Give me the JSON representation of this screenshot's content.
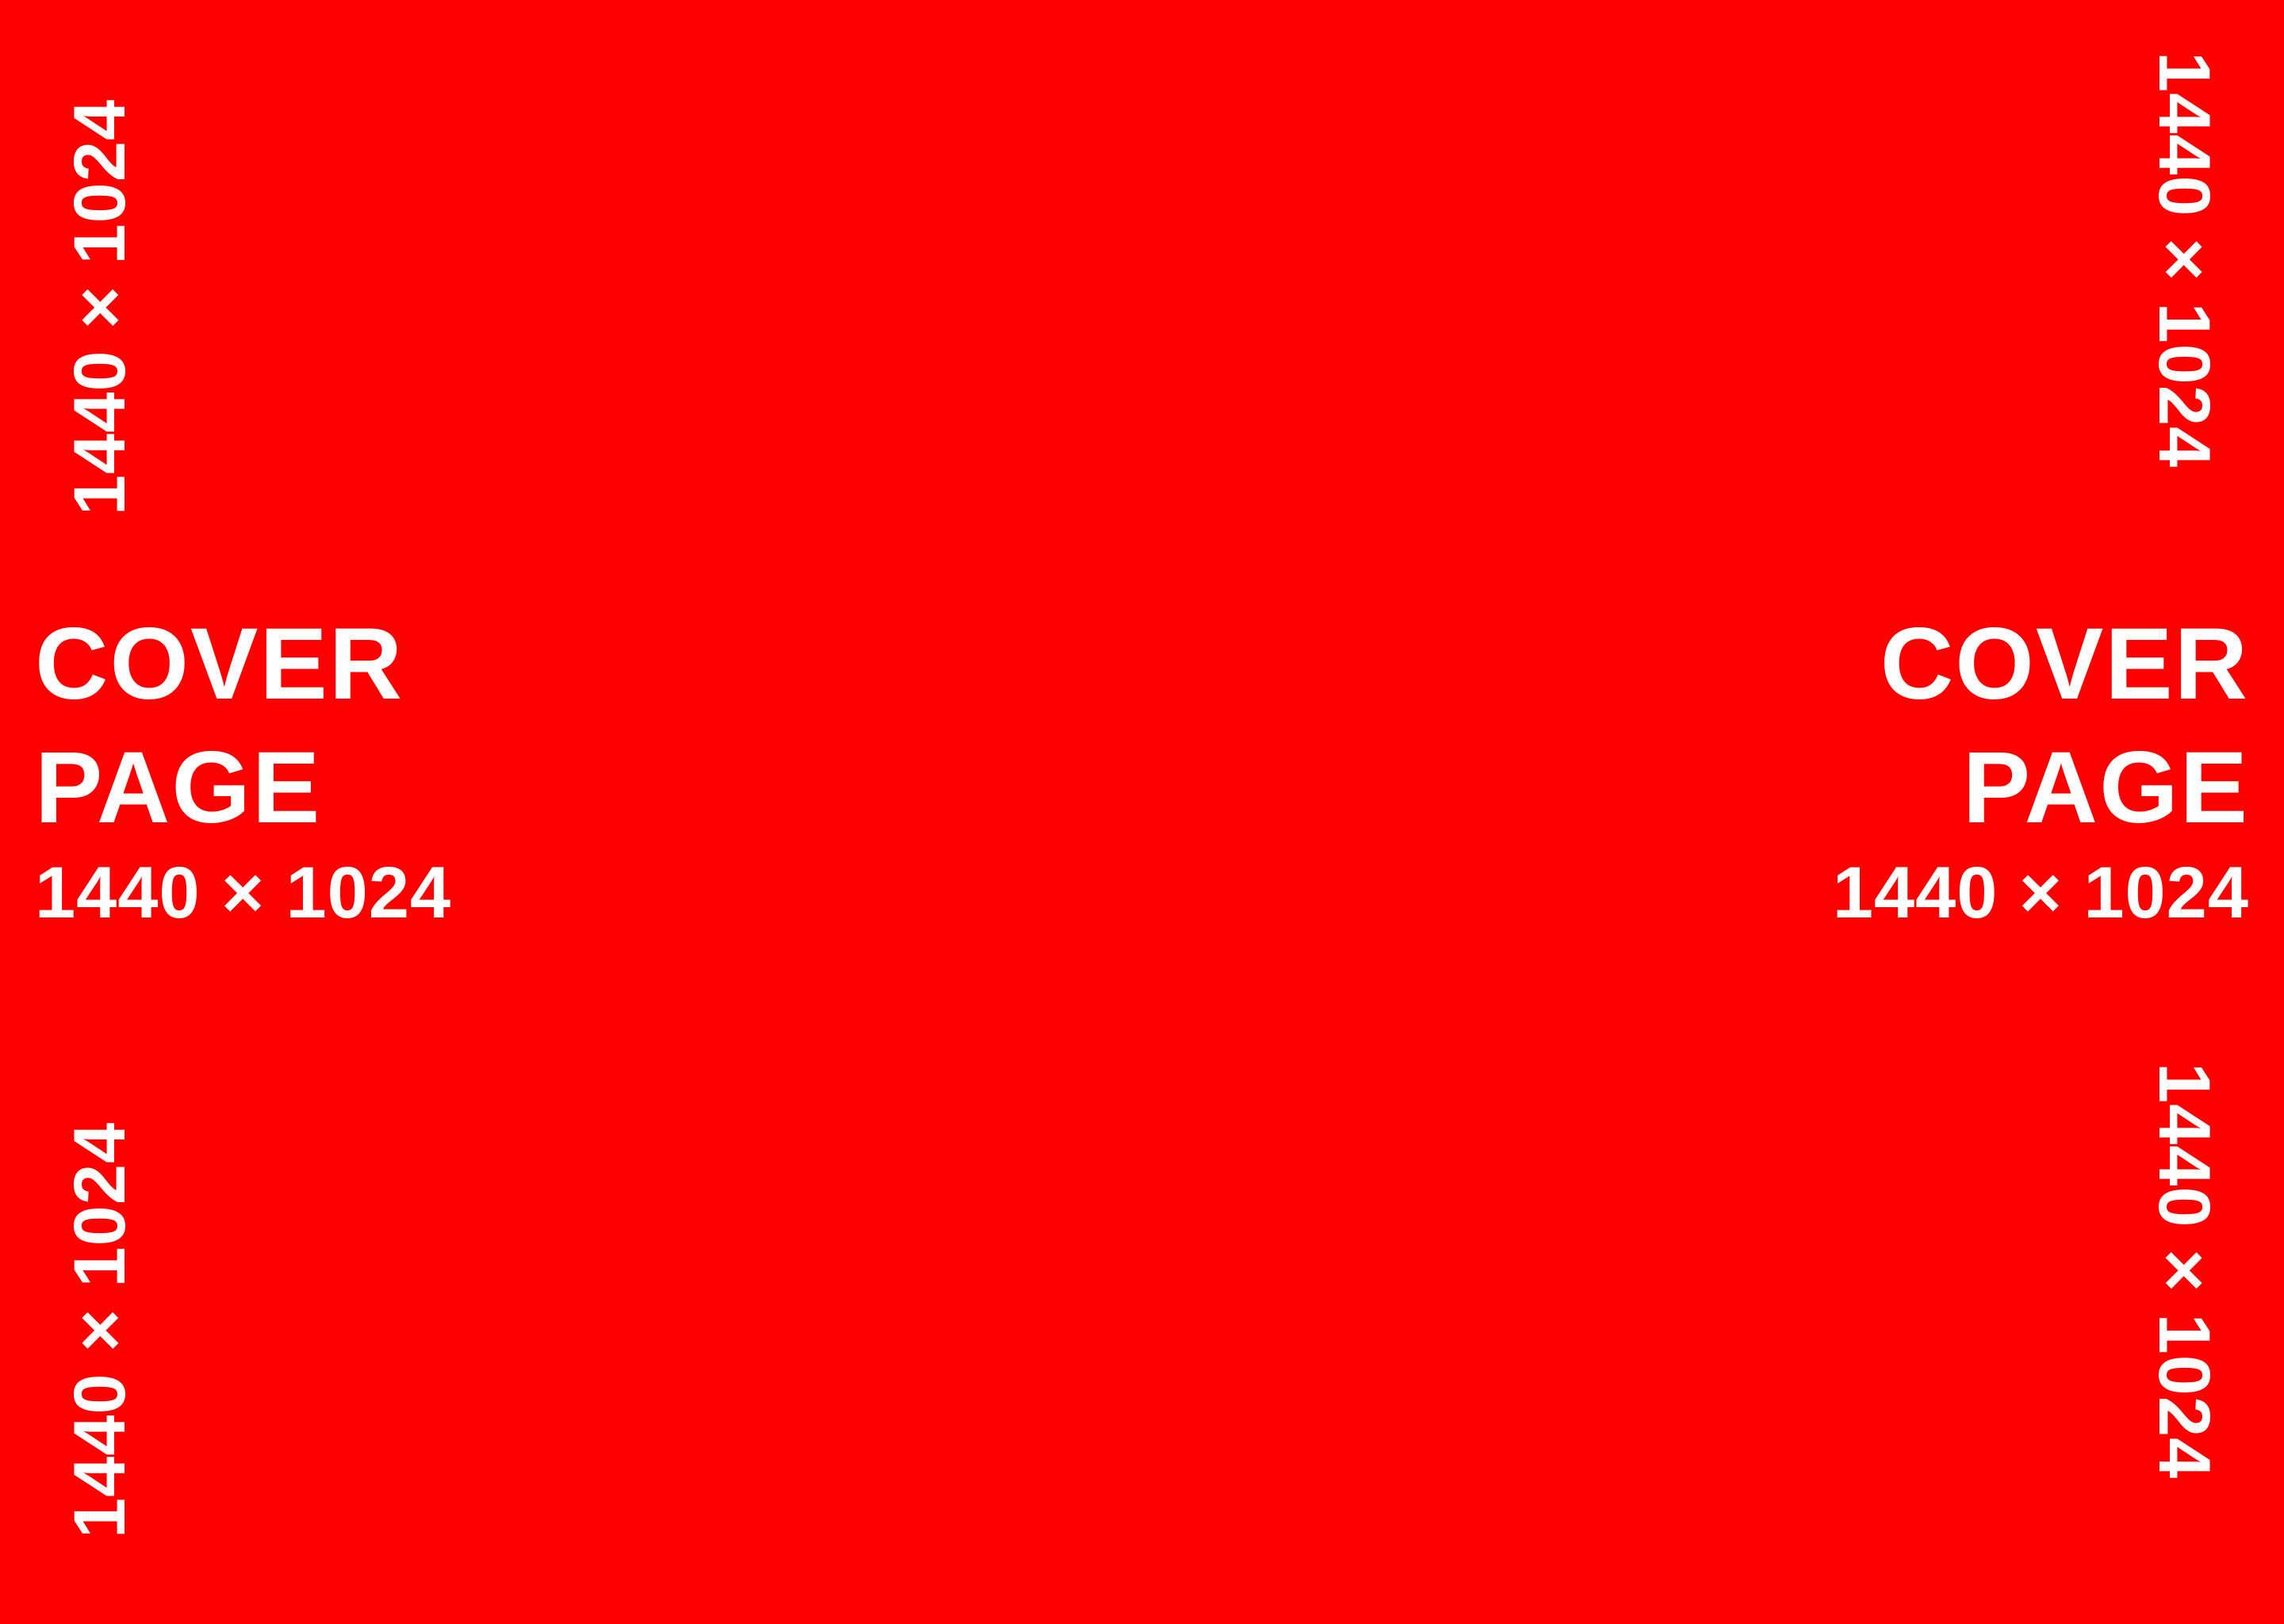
{
  "cover": {
    "title_line1": "COVER",
    "title_line2": "PAGE",
    "dimensions": "1440 × 1024"
  },
  "vertical_labels": {
    "left_top": "1440 × 1024",
    "left_bottom": "1440 × 1024",
    "right_top": "1440 × 1024",
    "right_bottom": "1440 × 1024"
  },
  "colors": {
    "background": "#ff0000",
    "text": "#ffffff"
  }
}
